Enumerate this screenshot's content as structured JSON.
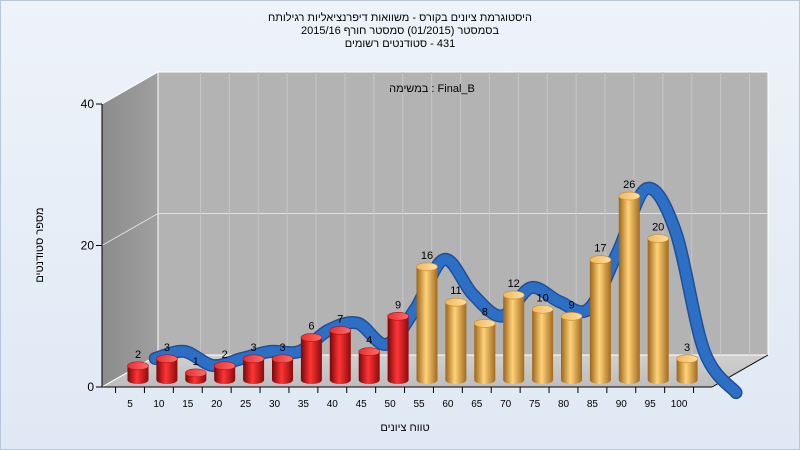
{
  "chart_data": {
    "type": "bar",
    "title_lines": [
      "היסטוגרמת ציונים בקורס - משוואות דיפרנציאליות רגילותח",
      "בסמסטר  (01/2015)  סמסטר חורף 2015/16",
      "431 - סטודנטים רשומים"
    ],
    "subtitle": "במשימה : Final_B",
    "xlabel": "טווח ציונים",
    "ylabel": "מספר סטודנטים",
    "ylim": [
      0,
      40
    ],
    "yticks": [
      0,
      20,
      40
    ],
    "categories": [
      "5",
      "10",
      "15",
      "20",
      "25",
      "30",
      "35",
      "40",
      "45",
      "50",
      "55",
      "60",
      "65",
      "70",
      "75",
      "80",
      "85",
      "90",
      "95",
      "100"
    ],
    "values": [
      2,
      3,
      1,
      2,
      3,
      3,
      6,
      7,
      4,
      9,
      16,
      11,
      8,
      12,
      10,
      9,
      17,
      26,
      20,
      3
    ],
    "bar_colors": {
      "fail": "#d9141a",
      "pass": "#e2a042"
    },
    "pass_start_index": 10,
    "curve_color": "#2e6fc6",
    "grid": true
  }
}
